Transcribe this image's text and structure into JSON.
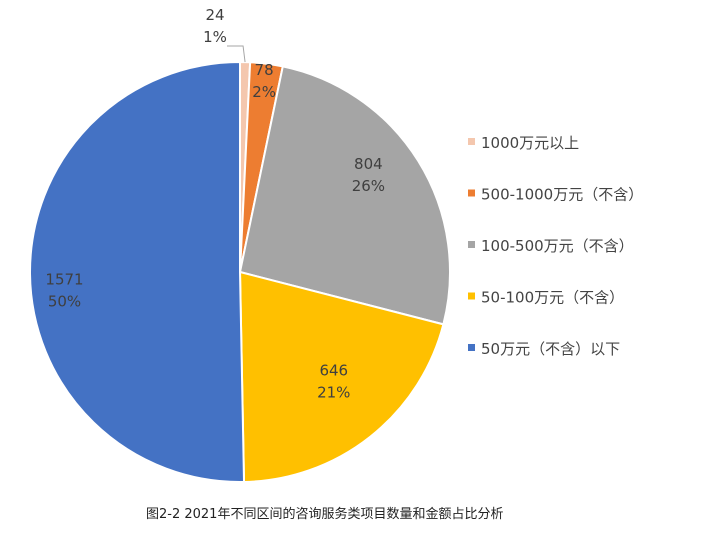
{
  "chart_data": {
    "type": "pie",
    "title": "",
    "caption": "图2-2 2021年不同区间的咨询服务类项目数量和金额占比分析",
    "start_angle_deg": 0,
    "direction": "clockwise",
    "legend_position": "right",
    "slices": [
      {
        "name": "1000万元以上",
        "value": 24,
        "percent_label": "1%",
        "color": "#f4c7ae",
        "label_color": "dark"
      },
      {
        "name": "500-1000万元（不含）",
        "value": 78,
        "percent_label": "2%",
        "color": "#ed7d31",
        "label_color": "dark"
      },
      {
        "name": "100-500万元（不含）",
        "value": 804,
        "percent_label": "26%",
        "color": "#a5a5a5",
        "label_color": "dark"
      },
      {
        "name": "50-100万元（不含）",
        "value": 646,
        "percent_label": "21%",
        "color": "#ffc000",
        "label_color": "dark"
      },
      {
        "name": "50万元（不含）以下",
        "value": 1571,
        "percent_label": "50%",
        "color": "#4472c4",
        "label_color": "dark"
      }
    ]
  }
}
